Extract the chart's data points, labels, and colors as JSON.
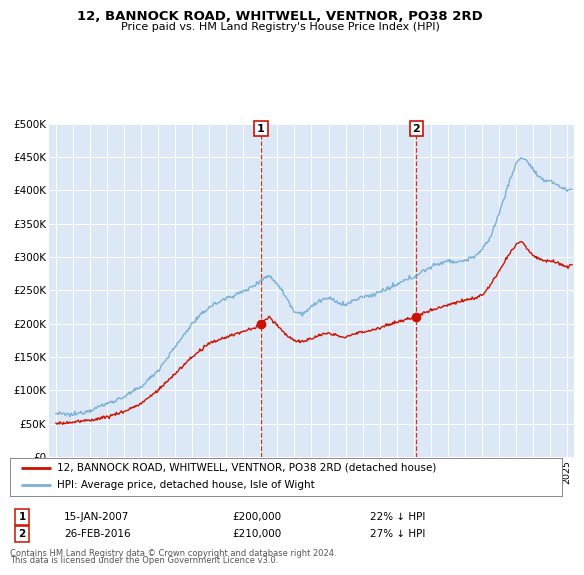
{
  "title": "12, BANNOCK ROAD, WHITWELL, VENTNOR, PO38 2RD",
  "subtitle": "Price paid vs. HM Land Registry's House Price Index (HPI)",
  "legend_line1": "12, BANNOCK ROAD, WHITWELL, VENTNOR, PO38 2RD (detached house)",
  "legend_line2": "HPI: Average price, detached house, Isle of Wight",
  "footnote1": "Contains HM Land Registry data © Crown copyright and database right 2024.",
  "footnote2": "This data is licensed under the Open Government Licence v3.0.",
  "marker1_date": "15-JAN-2007",
  "marker1_price": "£200,000",
  "marker1_hpi": "22% ↓ HPI",
  "marker2_date": "26-FEB-2016",
  "marker2_price": "£210,000",
  "marker2_hpi": "27% ↓ HPI",
  "sale1_year": 2007.04,
  "sale1_price": 200000,
  "sale2_year": 2016.15,
  "sale2_price": 210000,
  "hpi_color": "#7ab0d4",
  "price_color": "#cc1100",
  "marker_color": "#cc1100",
  "background_color": "#dce8f5",
  "ylim": [
    0,
    500000
  ],
  "xlim_start": 1994.6,
  "xlim_end": 2025.4
}
